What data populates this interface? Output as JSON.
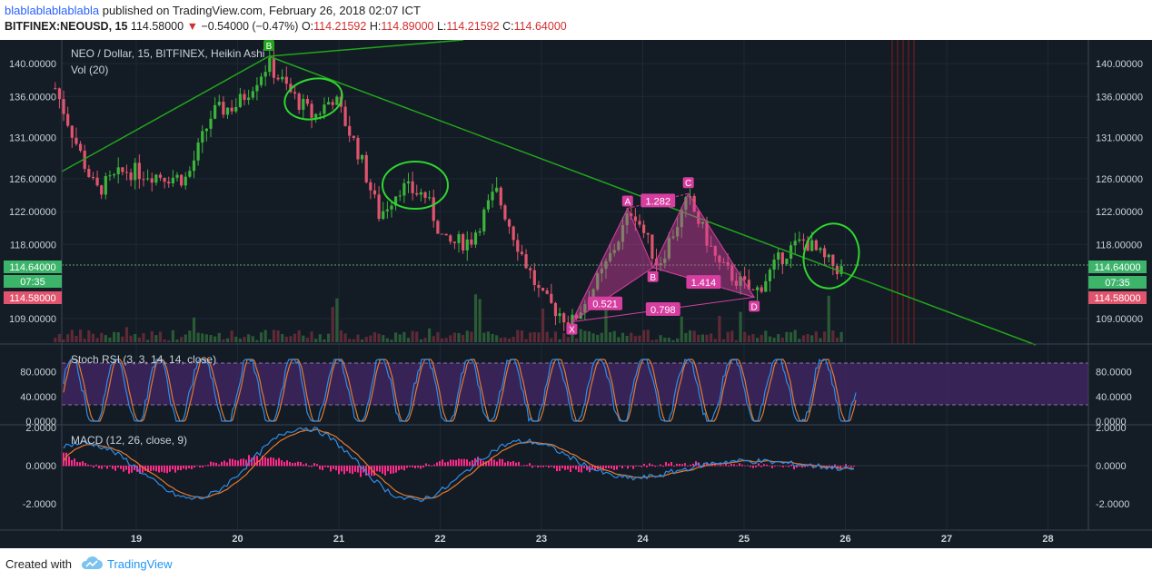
{
  "header": {
    "author": "blablablablablabla",
    "published": "published on TradingView.com, February 26, 2018 02:07 ICT",
    "symbol": "BITFINEX:NEOUSD, 15",
    "last": "114.58000",
    "change": "−0.54000 (−0.47%)",
    "o_label": "O:",
    "o_val": "114.21592",
    "h_label": "H:",
    "h_val": "114.89000",
    "l_label": "L:",
    "l_val": "114.21592",
    "c_label": "C:",
    "c_val": "114.64000"
  },
  "legend": {
    "main": "NEO / Dollar, 15, BITFINEX, Heikin Ashi",
    "vol": "Vol (20)",
    "rsi": "Stoch RSI (3, 3, 14, 14, close)",
    "macd": "MACD (12, 26, close, 9)"
  },
  "price_axis": {
    "ticks": [
      "140.00000",
      "136.00000",
      "131.00000",
      "126.00000",
      "122.00000",
      "118.00000",
      "109.00000"
    ],
    "last_label": "114.64000",
    "time_label": "07:35",
    "prev_label": "114.58000"
  },
  "rsi_axis": {
    "ticks": [
      "80.0000",
      "40.0000",
      "0.0000"
    ]
  },
  "macd_axis": {
    "ticks": [
      "2.0000",
      "0.0000",
      "-2.0000"
    ]
  },
  "time_axis": {
    "ticks": [
      "19",
      "20",
      "21",
      "22",
      "23",
      "24",
      "25",
      "26",
      "27",
      "28"
    ]
  },
  "pattern": {
    "points": [
      "X",
      "A",
      "B",
      "C",
      "D"
    ],
    "ratios": [
      "0.521",
      "1.282",
      "1.414",
      "0.798"
    ]
  },
  "trendline_top_label": "B",
  "footer": {
    "created": "Created with",
    "brand": "TradingView"
  },
  "colors": {
    "background": "#141c26",
    "up": "#3cb43c",
    "down": "#e0556d",
    "trend": "#22a51c",
    "pattern": "#d63ea0",
    "rsi_band": "#4a2a6e",
    "k_line": "#2d8ee8",
    "d_line": "#e47a2c",
    "hist": "#ff2a8a"
  },
  "chart_data": {
    "type": "candlestick",
    "title": "NEO / Dollar, 15, BITFINEX, Heikin Ashi",
    "x": [
      "19",
      "20",
      "21",
      "22",
      "23",
      "24",
      "25",
      "26"
    ],
    "price_path_close": [
      {
        "day": 18.2,
        "close": 137.0
      },
      {
        "day": 18.45,
        "close": 129.0
      },
      {
        "day": 18.6,
        "close": 124.5
      },
      {
        "day": 18.9,
        "close": 127.0
      },
      {
        "day": 19.2,
        "close": 126.5
      },
      {
        "day": 19.5,
        "close": 126.0
      },
      {
        "day": 19.75,
        "close": 134.0
      },
      {
        "day": 20.0,
        "close": 135.0
      },
      {
        "day": 20.3,
        "close": 140.0
      },
      {
        "day": 20.55,
        "close": 136.0
      },
      {
        "day": 20.75,
        "close": 133.5
      },
      {
        "day": 20.95,
        "close": 136.0
      },
      {
        "day": 21.2,
        "close": 129.0
      },
      {
        "day": 21.4,
        "close": 121.5
      },
      {
        "day": 21.6,
        "close": 125.0
      },
      {
        "day": 21.85,
        "close": 124.0
      },
      {
        "day": 22.05,
        "close": 118.0
      },
      {
        "day": 22.3,
        "close": 118.5
      },
      {
        "day": 22.55,
        "close": 124.5
      },
      {
        "day": 22.8,
        "close": 117.0
      },
      {
        "day": 23.0,
        "close": 111.5
      },
      {
        "day": 23.3,
        "close": 108.5
      },
      {
        "day": 23.6,
        "close": 114.5
      },
      {
        "day": 23.9,
        "close": 122.5
      },
      {
        "day": 24.15,
        "close": 115.5
      },
      {
        "day": 24.45,
        "close": 123.5
      },
      {
        "day": 24.75,
        "close": 115.5
      },
      {
        "day": 25.1,
        "close": 112.0
      },
      {
        "day": 25.4,
        "close": 117.0
      },
      {
        "day": 25.6,
        "close": 118.5
      },
      {
        "day": 25.8,
        "close": 116.0
      },
      {
        "day": 26.0,
        "close": 114.64
      }
    ],
    "xabcd": [
      {
        "point": "X",
        "day": 23.3,
        "price": 108.6
      },
      {
        "point": "A",
        "day": 23.85,
        "price": 122.4
      },
      {
        "point": "B",
        "day": 24.1,
        "price": 115.2
      },
      {
        "point": "C",
        "day": 24.45,
        "price": 124.2
      },
      {
        "point": "D",
        "day": 25.1,
        "price": 111.6
      }
    ],
    "stoch_rsi_range": [
      0,
      100
    ],
    "macd_range": [
      -3,
      2.4
    ],
    "ylim_price": [
      106,
      142
    ]
  }
}
